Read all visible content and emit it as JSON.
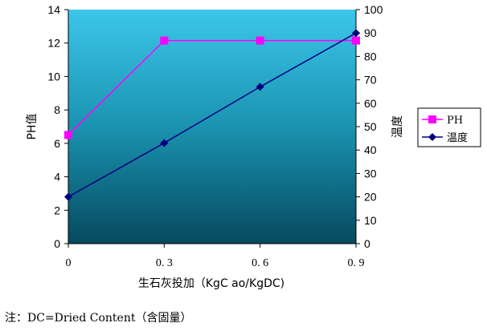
{
  "chart_data": {
    "type": "line",
    "x": [
      0,
      0.3,
      0.6,
      0.9
    ],
    "x_tick_labels": [
      "0",
      "0. 3",
      "0. 6",
      "0. 9"
    ],
    "xlim": [
      0,
      0.9
    ],
    "xlabel": "生石灰投加（KgC ao/KgDC)",
    "ylabel_left": "PH值",
    "ylim_left": [
      0,
      14
    ],
    "yticks_left": [
      0,
      2,
      4,
      6,
      8,
      10,
      12,
      14
    ],
    "ylabel_right": "温度",
    "ylim_right": [
      0,
      100
    ],
    "yticks_right": [
      0,
      10,
      20,
      30,
      40,
      50,
      60,
      70,
      80,
      90,
      100
    ],
    "series": [
      {
        "name": "PH",
        "axis": "left",
        "marker": "square",
        "color": "#ff00ff",
        "values": [
          6.5,
          12.15,
          12.15,
          12.15
        ]
      },
      {
        "name": "温度",
        "axis": "right",
        "marker": "diamond",
        "color": "#000080",
        "values": [
          20,
          43,
          67,
          90
        ]
      }
    ],
    "legend_position": "right",
    "background": "gradient-teal"
  },
  "note": "注：DC=Dried Content（含固量）"
}
